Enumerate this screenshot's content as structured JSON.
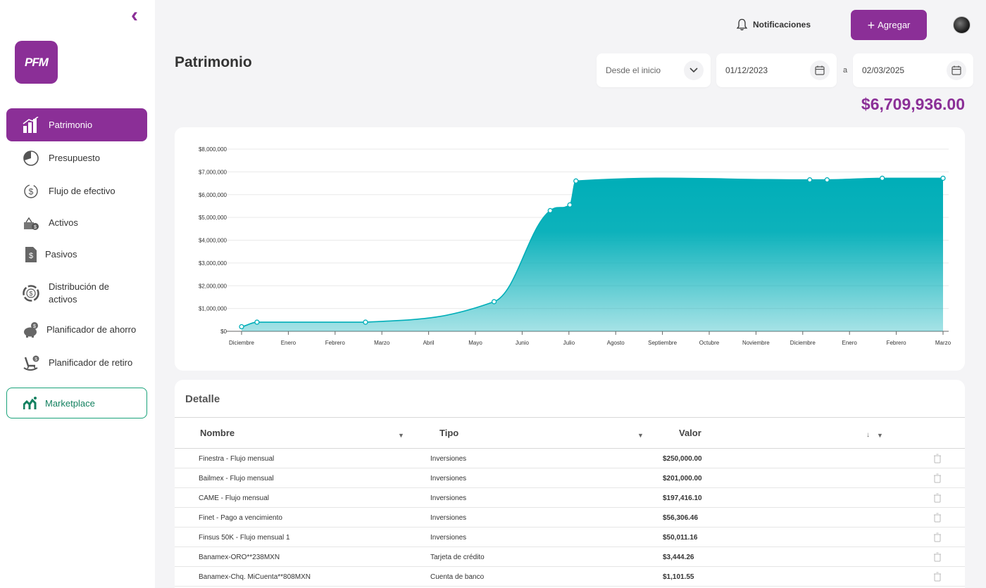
{
  "sidebar": {
    "logo_text": "PFM",
    "items": [
      {
        "label": "Patrimonio",
        "icon": "bar-chart-icon"
      },
      {
        "label": "Presupuesto",
        "icon": "pie-chart-icon"
      },
      {
        "label": "Flujo de efectivo",
        "icon": "cash-flow-icon"
      },
      {
        "label": "Activos",
        "icon": "assets-icon"
      },
      {
        "label": "Pasivos",
        "icon": "liabilities-icon"
      },
      {
        "label": "Distribución de activos",
        "icon": "distribution-icon"
      },
      {
        "label": "Planificador de ahorro",
        "icon": "piggy-bank-icon"
      },
      {
        "label": "Planificador de retiro",
        "icon": "rocking-chair-icon"
      }
    ],
    "marketplace_label": "Marketplace"
  },
  "header": {
    "notifications_label": "Notificaciones",
    "add_label": "Agregar"
  },
  "page": {
    "title": "Patrimonio",
    "range_select": "Desde el inicio",
    "date_from": "01/12/2023",
    "date_sep": "a",
    "date_to": "02/03/2025",
    "total": "$6,709,936.00"
  },
  "chart_data": {
    "type": "area",
    "ylim": [
      0,
      8000000
    ],
    "y_ticks": [
      "$0",
      "$1,000,000",
      "$2,000,000",
      "$3,000,000",
      "$4,000,000",
      "$5,000,000",
      "$6,000,000",
      "$7,000,000",
      "$8,000,000"
    ],
    "x_ticks": [
      "Diciembre",
      "Enero",
      "Febrero",
      "Marzo",
      "Abril",
      "Mayo",
      "Junio",
      "Julio",
      "Agosto",
      "Septiembre",
      "Octubre",
      "Noviembre",
      "Diciembre",
      "Enero",
      "Febrero",
      "Marzo"
    ],
    "points": [
      {
        "x": 0.0,
        "y": 200000
      },
      {
        "x": 0.33,
        "y": 400000
      },
      {
        "x": 2.65,
        "y": 400000
      },
      {
        "x": 5.4,
        "y": 1300000
      },
      {
        "x": 6.6,
        "y": 5300000
      },
      {
        "x": 7.02,
        "y": 5550000
      },
      {
        "x": 7.15,
        "y": 6600000
      },
      {
        "x": 12.15,
        "y": 6650000
      },
      {
        "x": 12.52,
        "y": 6650000
      },
      {
        "x": 13.7,
        "y": 6720000
      },
      {
        "x": 15.0,
        "y": 6720000
      }
    ],
    "color": "#00aeb8"
  },
  "detail": {
    "title": "Detalle",
    "columns": [
      "Nombre",
      "Tipo",
      "Valor"
    ],
    "rows": [
      {
        "name": "Finestra - Flujo mensual",
        "type": "Inversiones",
        "value": "$250,000.00"
      },
      {
        "name": "Bailmex - Flujo mensual",
        "type": "Inversiones",
        "value": "$201,000.00"
      },
      {
        "name": "CAME - Flujo mensual",
        "type": "Inversiones",
        "value": "$197,416.10"
      },
      {
        "name": "Finet - Pago a vencimiento",
        "type": "Inversiones",
        "value": "$56,306.46"
      },
      {
        "name": "Finsus 50K - Flujo mensual 1",
        "type": "Inversiones",
        "value": "$50,011.16"
      },
      {
        "name": "Banamex-ORO**238MXN",
        "type": "Tarjeta de crédito",
        "value": "$3,444.26"
      },
      {
        "name": "Banamex-Chq. MiCuenta**808MXN",
        "type": "Cuenta de banco",
        "value": "$1,101.55"
      }
    ]
  },
  "colors": {
    "brand": "#8b2f97",
    "accent_teal": "#00aeb8",
    "marketplace_green": "#12805f"
  }
}
